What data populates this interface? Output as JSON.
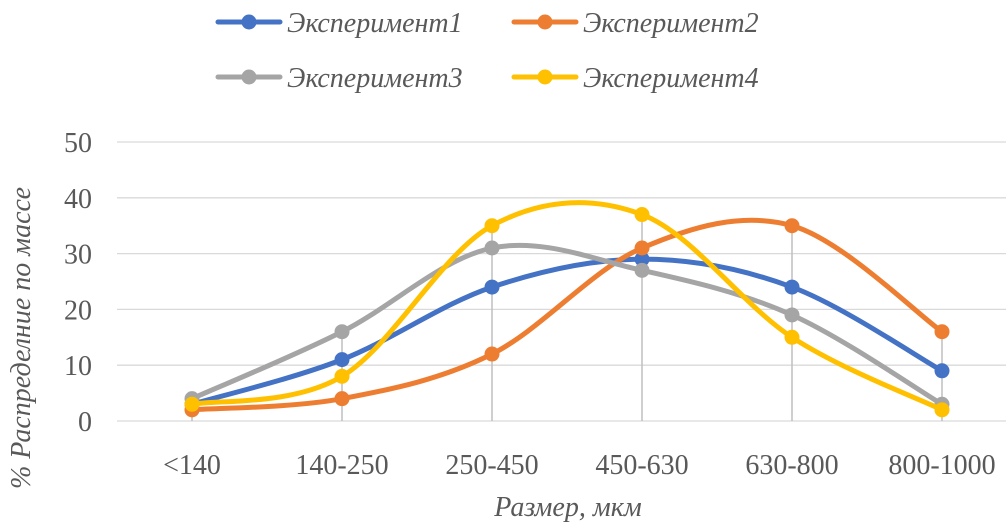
{
  "chart_data": {
    "type": "line",
    "smooth": true,
    "categories": [
      "<140",
      "140-250",
      "250-450",
      "450-630",
      "630-800",
      "800-1000"
    ],
    "series": [
      {
        "name": "Эксперимент1",
        "color": "#4472C4",
        "values": [
          3,
          11,
          24,
          29,
          24,
          9
        ]
      },
      {
        "name": "Эксперимент2",
        "color": "#ED7D31",
        "values": [
          2,
          4,
          12,
          31,
          35,
          16
        ]
      },
      {
        "name": "Эксперимент3",
        "color": "#A5A5A5",
        "values": [
          4,
          16,
          31,
          27,
          19,
          3
        ]
      },
      {
        "name": "Эксперимент4",
        "color": "#FFC000",
        "values": [
          3,
          8,
          35,
          37,
          15,
          2
        ]
      }
    ],
    "yticks": [
      0,
      10,
      20,
      30,
      40,
      50
    ],
    "ylim": [
      0,
      50
    ],
    "xlabel": "Размер, мкм",
    "ylabel": "% Распределние по массе",
    "grid": "horizontal major gridlines",
    "drop_lines": true,
    "legend": "top"
  }
}
